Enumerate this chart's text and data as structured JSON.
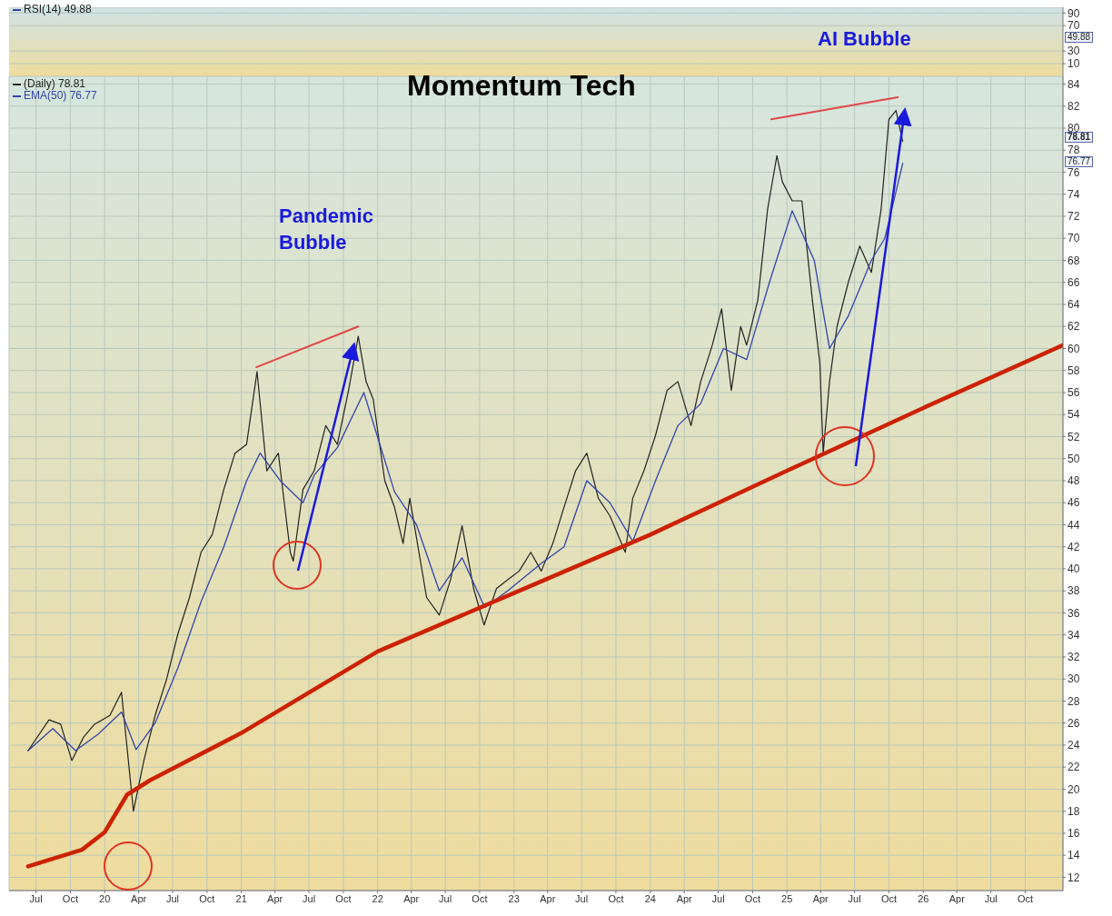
{
  "chart_data": [
    {
      "type": "line",
      "series": [
        {
          "name": "RSI(14) 49.88",
          "color": "#3344aa"
        }
      ],
      "ylim": [
        -10,
        99
      ],
      "yticks": [
        10,
        30,
        70,
        90
      ],
      "grid": true,
      "legend": "top left",
      "tick_labels": "y",
      "marker": "none",
      "line_style": "solid",
      "annotations": [
        "49.88"
      ]
    },
    {
      "type": "line",
      "title": "Momentum Tech",
      "legend": "top left",
      "grid": true,
      "marker": "none",
      "line_style": "solid",
      "xlim": [
        "2019-04-20",
        "2027-01-10"
      ],
      "xticks": [
        {
          "value": "2019-07-01",
          "label": "Jul"
        },
        {
          "value": "2019-10-01",
          "label": "Oct"
        },
        {
          "value": "2020-01-01",
          "label": "20"
        },
        {
          "value": "2020-04-01",
          "label": "Apr"
        },
        {
          "value": "2020-07-01",
          "label": "Jul"
        },
        {
          "value": "2020-10-01",
          "label": "Oct"
        },
        {
          "value": "2021-01-01",
          "label": "21"
        },
        {
          "value": "2021-04-01",
          "label": "Apr"
        },
        {
          "value": "2021-07-01",
          "label": "Jul"
        },
        {
          "value": "2021-10-01",
          "label": "Oct"
        },
        {
          "value": "2022-01-01",
          "label": "22"
        },
        {
          "value": "2022-04-01",
          "label": "Apr"
        },
        {
          "value": "2022-07-01",
          "label": "Jul"
        },
        {
          "value": "2022-10-01",
          "label": "Oct"
        },
        {
          "value": "2023-01-01",
          "label": "23"
        },
        {
          "value": "2023-04-01",
          "label": "Apr"
        },
        {
          "value": "2023-07-01",
          "label": "Jul"
        },
        {
          "value": "2023-10-01",
          "label": "Oct"
        },
        {
          "value": "2024-01-01",
          "label": "24"
        },
        {
          "value": "2024-04-01",
          "label": "Apr"
        },
        {
          "value": "2024-07-01",
          "label": "Jul"
        },
        {
          "value": "2024-10-01",
          "label": "Oct"
        },
        {
          "value": "2025-01-01",
          "label": "25"
        },
        {
          "value": "2025-04-01",
          "label": "Apr"
        },
        {
          "value": "2025-07-01",
          "label": "Jul"
        },
        {
          "value": "2025-10-01",
          "label": "Oct"
        },
        {
          "value": "2026-01-01",
          "label": "26"
        },
        {
          "value": "2026-04-01",
          "label": "Apr"
        },
        {
          "value": "2026-07-01",
          "label": "Jul"
        },
        {
          "value": "2026-10-01",
          "label": "Oct"
        }
      ],
      "ylim": [
        10.8,
        84.7
      ],
      "yticks": [
        12,
        14,
        16,
        18,
        20,
        22,
        24,
        26,
        28,
        30,
        32,
        34,
        36,
        38,
        40,
        42,
        44,
        46,
        48,
        50,
        52,
        54,
        56,
        58,
        60,
        62,
        64,
        66,
        68,
        70,
        72,
        74,
        76,
        78,
        80,
        82,
        84
      ],
      "series": [
        {
          "name": "(Daily) 78.81",
          "color": "#222222",
          "x": [
            "2019-06-10",
            "2019-08-05",
            "2019-09-05",
            "2019-10-05",
            "2019-11-05",
            "2019-12-05",
            "2020-01-15",
            "2020-02-15",
            "2020-03-18",
            "2020-04-15",
            "2020-05-15",
            "2020-06-15",
            "2020-07-15",
            "2020-08-15",
            "2020-09-15",
            "2020-10-15",
            "2020-11-15",
            "2020-12-15",
            "2021-01-15",
            "2021-02-12",
            "2021-03-10",
            "2021-04-10",
            "2021-05-12",
            "2021-05-20",
            "2021-06-15",
            "2021-07-15",
            "2021-08-15",
            "2021-09-15",
            "2021-10-15",
            "2021-11-10",
            "2021-12-01",
            "2021-12-20",
            "2022-01-20",
            "2022-02-15",
            "2022-03-10",
            "2022-03-28",
            "2022-05-12",
            "2022-06-15",
            "2022-07-15",
            "2022-08-15",
            "2022-09-15",
            "2022-10-13",
            "2022-11-15",
            "2022-12-15",
            "2023-01-15",
            "2023-02-15",
            "2023-03-15",
            "2023-04-15",
            "2023-05-15",
            "2023-06-15",
            "2023-07-15",
            "2023-08-15",
            "2023-09-15",
            "2023-10-26",
            "2023-11-15",
            "2023-12-15",
            "2024-01-15",
            "2024-02-15",
            "2024-03-15",
            "2024-04-19",
            "2024-05-15",
            "2024-06-15",
            "2024-07-10",
            "2024-08-05",
            "2024-08-30",
            "2024-09-15",
            "2024-10-15",
            "2024-11-10",
            "2024-12-05",
            "2024-12-20",
            "2025-01-15",
            "2025-02-10",
            "2025-03-10",
            "2025-03-30",
            "2025-04-08",
            "2025-04-25",
            "2025-05-15",
            "2025-06-15",
            "2025-07-15",
            "2025-08-15",
            "2025-09-10",
            "2025-10-01",
            "2025-10-20",
            "2025-11-07"
          ],
          "values": [
            23.5,
            26.3,
            25.9,
            22.6,
            24.7,
            25.9,
            26.7,
            28.8,
            18,
            22.6,
            26.7,
            30,
            34.1,
            37.4,
            41.5,
            43.1,
            47.2,
            50.5,
            51.3,
            57.9,
            48.9,
            50.5,
            41.5,
            40.7,
            47.2,
            48.9,
            53,
            51.3,
            56.2,
            61.1,
            57,
            55.4,
            48,
            45.6,
            42.3,
            46.4,
            37.4,
            35.8,
            39,
            43.9,
            38.2,
            34.9,
            38.2,
            39,
            39.8,
            41.5,
            39.8,
            42.3,
            45.6,
            48.9,
            50.5,
            46.4,
            44.8,
            41.5,
            46.4,
            48.9,
            52.1,
            56.2,
            57,
            53,
            57,
            60.3,
            63.6,
            56.2,
            62,
            60.3,
            64.4,
            72.6,
            77.5,
            75.1,
            73.4,
            73.4,
            64.4,
            58.7,
            50.5,
            57,
            62,
            66.1,
            69.3,
            66.9,
            72.6,
            80.8,
            81.6,
            78.8
          ]
        },
        {
          "name": "EMA(50) 76.77",
          "color": "#3344aa",
          "x": [
            "2019-06-10",
            "2019-08-15",
            "2019-10-15",
            "2019-12-15",
            "2020-02-15",
            "2020-03-25",
            "2020-05-15",
            "2020-07-15",
            "2020-09-15",
            "2020-11-15",
            "2021-01-15",
            "2021-02-20",
            "2021-04-15",
            "2021-06-15",
            "2021-07-15",
            "2021-09-15",
            "2021-11-25",
            "2022-02-15",
            "2022-04-15",
            "2022-06-15",
            "2022-08-15",
            "2022-10-15",
            "2022-12-15",
            "2023-03-15",
            "2023-05-15",
            "2023-07-15",
            "2023-09-15",
            "2023-11-15",
            "2024-01-15",
            "2024-03-15",
            "2024-05-15",
            "2024-07-15",
            "2024-09-15",
            "2024-11-15",
            "2025-01-15",
            "2025-03-15",
            "2025-04-25",
            "2025-06-15",
            "2025-08-15",
            "2025-09-20",
            "2025-11-07"
          ],
          "values": [
            23.5,
            25.5,
            23.5,
            25,
            27,
            23.6,
            26,
            31,
            37,
            42,
            48,
            50.5,
            48,
            46,
            48.5,
            51,
            56,
            47,
            44,
            38,
            41,
            36.5,
            38,
            40.5,
            42,
            48,
            46,
            42.5,
            48,
            53,
            55,
            60,
            59,
            66,
            72.5,
            68,
            60,
            63,
            68,
            70,
            76.8
          ]
        },
        {
          "color": "#cc2200",
          "x": [
            "2019-06-10",
            "2019-11-01",
            "2020-01-01",
            "2020-03-01",
            "2020-05-01",
            "2021-01-01",
            "2022-01-01",
            "2023-01-01",
            "2024-01-01",
            "2025-01-01",
            "2026-01-01",
            "2027-01-10"
          ],
          "values": [
            13,
            14.5,
            16.1,
            19.5,
            20.8,
            25.1,
            32.5,
            37.8,
            43.1,
            48.9,
            54.6,
            60.3
          ]
        },
        {
          "color": "#e04848",
          "x": [
            "2021-02-10",
            "2021-11-10"
          ],
          "values": [
            58.3,
            62
          ]
        },
        {
          "color": "#e04848",
          "x": [
            "2024-11-20",
            "2025-10-25"
          ],
          "values": [
            80.8,
            82.8
          ]
        }
      ],
      "annotations": [
        "Pandemic Bubble",
        "AI Bubble",
        "78.81",
        "76.77"
      ]
    }
  ]
}
